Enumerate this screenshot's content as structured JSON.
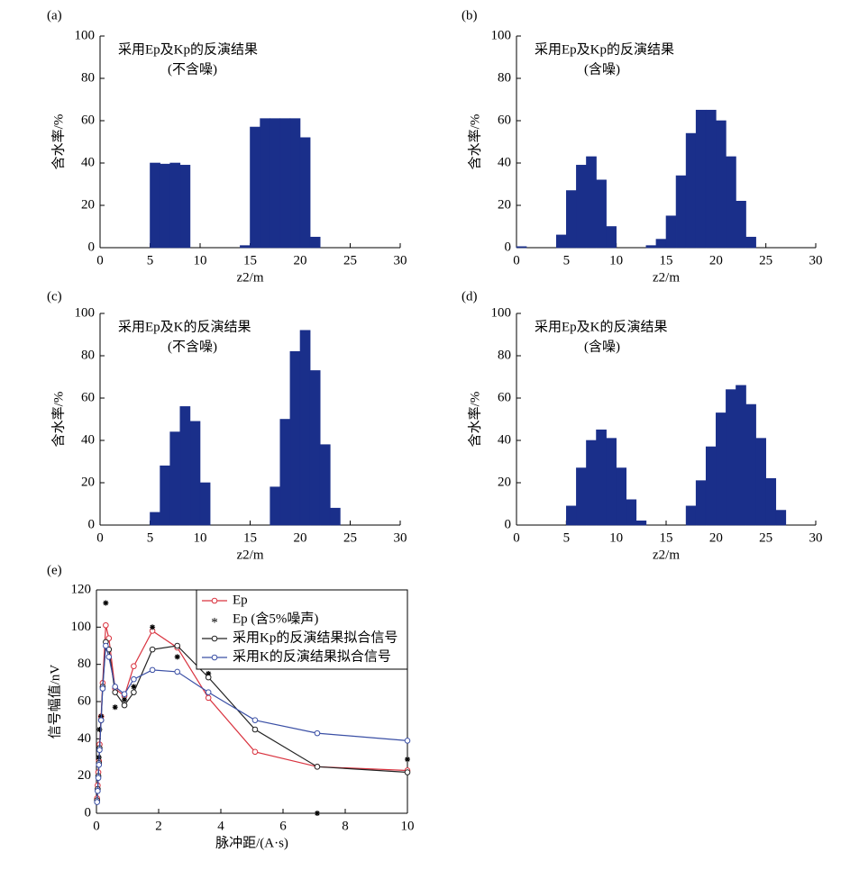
{
  "chart_data": [
    {
      "type": "histogram",
      "panel_label": "(a)",
      "annotation": [
        "采用Ep及Kp的反演结果",
        "(不含噪)"
      ],
      "xlabel": "z2/m",
      "ylabel": "含水率/%",
      "color": "#1a2f8a",
      "bins": [
        0,
        1,
        2,
        3,
        4,
        5,
        6,
        7,
        8,
        9,
        10,
        11,
        12,
        13,
        14,
        15,
        16,
        17,
        18,
        19,
        20,
        21,
        22,
        23,
        24,
        25,
        26,
        27,
        28,
        29,
        30
      ],
      "values": [
        0,
        0,
        0,
        0,
        0,
        40,
        39.5,
        40,
        39,
        0,
        0,
        0,
        0,
        0,
        1,
        57,
        61,
        61,
        61,
        61,
        52,
        5,
        0,
        0,
        0,
        0,
        0,
        0,
        0,
        0
      ],
      "xlim": [
        0,
        30
      ],
      "xticks": [
        0,
        5,
        10,
        15,
        20,
        25,
        30
      ],
      "ylim": [
        0,
        100
      ],
      "yticks": [
        0,
        20,
        40,
        60,
        80,
        100
      ]
    },
    {
      "type": "histogram",
      "panel_label": "(b)",
      "annotation": [
        "采用Ep及Kp的反演结果",
        "(含噪)"
      ],
      "xlabel": "z2/m",
      "ylabel": "含水率/%",
      "color": "#1a2f8a",
      "bins": [
        0,
        1,
        2,
        3,
        4,
        5,
        6,
        7,
        8,
        9,
        10,
        11,
        12,
        13,
        14,
        15,
        16,
        17,
        18,
        19,
        20,
        21,
        22,
        23,
        24,
        25,
        26,
        27,
        28,
        29,
        30
      ],
      "values": [
        0.5,
        0,
        0,
        0,
        6,
        27,
        39,
        43,
        32,
        10,
        0,
        0,
        0,
        1,
        4,
        15,
        34,
        54,
        65,
        65,
        60,
        43,
        22,
        5,
        0,
        0,
        0,
        0,
        0,
        0
      ],
      "xlim": [
        0,
        30
      ],
      "xticks": [
        0,
        5,
        10,
        15,
        20,
        25,
        30
      ],
      "ylim": [
        0,
        100
      ],
      "yticks": [
        0,
        20,
        40,
        60,
        80,
        100
      ]
    },
    {
      "type": "histogram",
      "panel_label": "(c)",
      "annotation": [
        "采用Ep及K的反演结果",
        "(不含噪)"
      ],
      "xlabel": "z2/m",
      "ylabel": "含水率/%",
      "color": "#1a2f8a",
      "bins": [
        0,
        1,
        2,
        3,
        4,
        5,
        6,
        7,
        8,
        9,
        10,
        11,
        12,
        13,
        14,
        15,
        16,
        17,
        18,
        19,
        20,
        21,
        22,
        23,
        24,
        25,
        26,
        27,
        28,
        29,
        30
      ],
      "values": [
        0,
        0,
        0,
        0,
        0,
        6,
        28,
        44,
        56,
        49,
        20,
        0,
        0,
        0,
        0,
        0,
        0,
        18,
        50,
        82,
        92,
        73,
        38,
        8,
        0,
        0,
        0,
        0,
        0,
        0
      ],
      "xlim": [
        0,
        30
      ],
      "xticks": [
        0,
        5,
        10,
        15,
        20,
        25,
        30
      ],
      "ylim": [
        0,
        100
      ],
      "yticks": [
        0,
        20,
        40,
        60,
        80,
        100
      ]
    },
    {
      "type": "histogram",
      "panel_label": "(d)",
      "annotation": [
        "采用Ep及K的反演结果",
        "(含噪)"
      ],
      "xlabel": "z2/m",
      "ylabel": "含水率/%",
      "color": "#1a2f8a",
      "bins": [
        0,
        1,
        2,
        3,
        4,
        5,
        6,
        7,
        8,
        9,
        10,
        11,
        12,
        13,
        14,
        15,
        16,
        17,
        18,
        19,
        20,
        21,
        22,
        23,
        24,
        25,
        26,
        27,
        28,
        29,
        30
      ],
      "values": [
        0,
        0,
        0,
        0,
        0,
        9,
        27,
        40,
        45,
        41,
        27,
        12,
        2,
        0,
        0,
        0,
        0,
        9,
        21,
        37,
        53,
        64,
        66,
        57,
        41,
        22,
        7,
        0,
        0,
        0
      ],
      "xlim": [
        0,
        30
      ],
      "xticks": [
        0,
        5,
        10,
        15,
        20,
        25,
        30
      ],
      "ylim": [
        0,
        100
      ],
      "yticks": [
        0,
        20,
        40,
        60,
        80,
        100
      ]
    },
    {
      "type": "line",
      "panel_label": "(e)",
      "xlabel": "脉冲距/(A·s)",
      "ylabel": "信号幅值/nV",
      "x": [
        0.02,
        0.04,
        0.06,
        0.08,
        0.1,
        0.15,
        0.2,
        0.3,
        0.4,
        0.6,
        0.9,
        1.2,
        1.8,
        2.6,
        3.6,
        5.1,
        7.1,
        10
      ],
      "series": [
        {
          "name": "Ep",
          "color": "#d9333f",
          "marker": "o",
          "line": true,
          "values": [
            8,
            15,
            22,
            28,
            37,
            52,
            70,
            101,
            94,
            67,
            63,
            79,
            98,
            89,
            62,
            33,
            25,
            23
          ]
        },
        {
          "name": "Ep (含5%噪声)",
          "color": "#000000",
          "marker": "*",
          "line": false,
          "values": [
            6,
            12,
            20,
            30,
            45,
            52,
            68,
            113,
            88,
            57,
            61,
            68,
            100,
            84,
            75,
            45,
            0,
            29
          ]
        },
        {
          "name": "采用Kp的反演结果拟合信号",
          "color": "#222222",
          "marker": "o",
          "line": true,
          "values": [
            7,
            13,
            20,
            27,
            35,
            50,
            68,
            92,
            88,
            65,
            58,
            65,
            88,
            90,
            73,
            45,
            25,
            22
          ]
        },
        {
          "name": "采用K的反演结果拟合信号",
          "color": "#3a4fa5",
          "marker": "o",
          "line": true,
          "values": [
            6,
            12,
            19,
            26,
            34,
            50,
            67,
            90,
            84,
            68,
            64,
            72,
            77,
            76,
            65,
            50,
            43,
            39
          ]
        }
      ],
      "xlim": [
        0,
        10
      ],
      "xticks": [
        0,
        2,
        4,
        6,
        8,
        10
      ],
      "ylim": [
        0,
        120
      ],
      "yticks": [
        0,
        20,
        40,
        60,
        80,
        100,
        120
      ],
      "legend": "upper right"
    }
  ]
}
